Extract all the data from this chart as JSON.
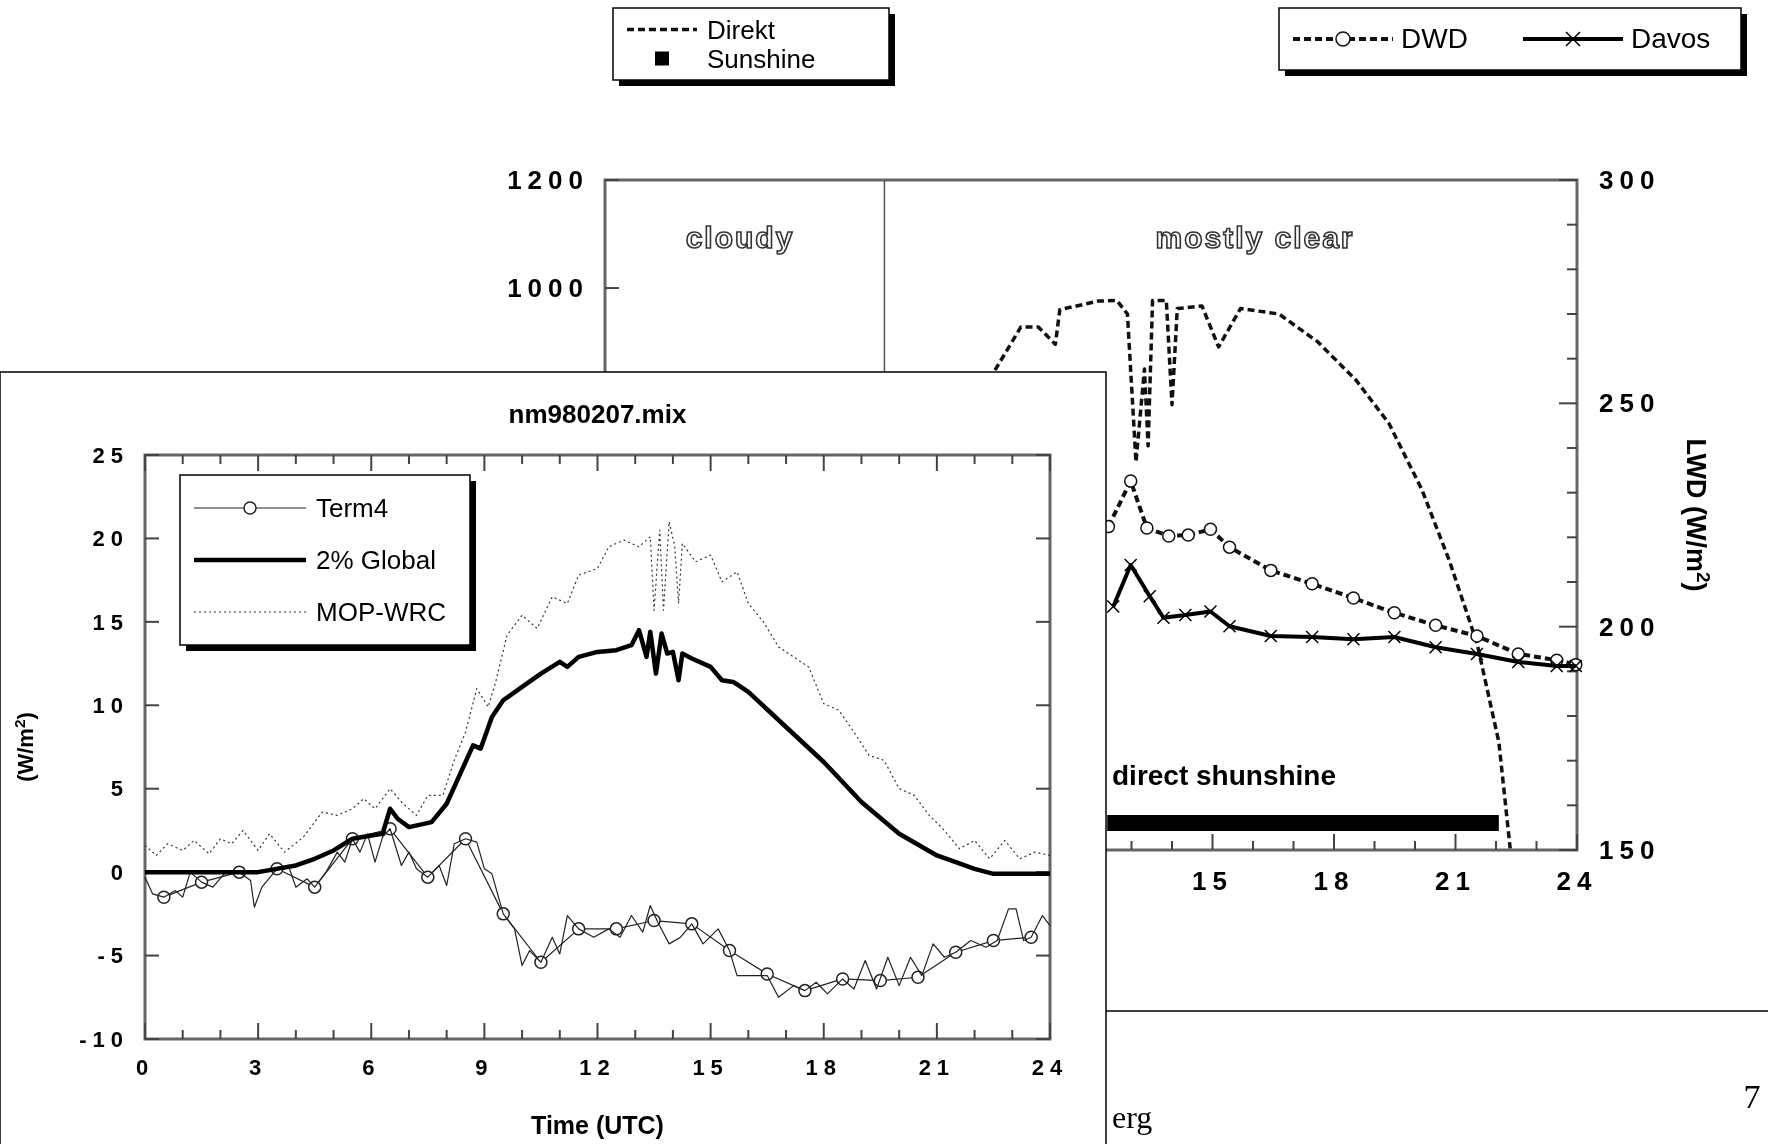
{
  "chart_data": [
    {
      "type": "line",
      "y2label": "LWD (W/m$^{2}$)",
      "legend": "top",
      "xlim": [
        0,
        24
      ],
      "xticks": [
        {
          "value": 13,
          "label": null
        },
        {
          "value": 14,
          "label": null
        },
        15,
        {
          "value": 16,
          "label": null
        },
        {
          "value": 17,
          "label": null
        },
        18,
        {
          "value": 19,
          "label": null
        },
        {
          "value": 20,
          "label": null
        },
        21,
        {
          "value": 22,
          "label": null
        },
        {
          "value": 23,
          "label": null
        },
        24
      ],
      "ylim": [
        -40,
        1200
      ],
      "yticks": [
        1000,
        1200
      ],
      "y2lim": [
        150,
        300
      ],
      "y2ticks": [
        150,
        {
          "value": 160,
          "label": null
        },
        {
          "value": 170,
          "label": null
        },
        {
          "value": 180,
          "label": null
        },
        {
          "value": 190,
          "label": null
        },
        200,
        {
          "value": 210,
          "label": null
        },
        {
          "value": 220,
          "label": null
        },
        {
          "value": 230,
          "label": null
        },
        {
          "value": 240,
          "label": null
        },
        250,
        {
          "value": 260,
          "label": null
        },
        {
          "value": 270,
          "label": null
        },
        {
          "value": 280,
          "label": null
        },
        {
          "value": 290,
          "label": null
        },
        300
      ],
      "ref_lines": [
        {
          "axis": "x",
          "value": 6.9,
          "color": "#555555",
          "line_style": "solid"
        }
      ],
      "annotations": [
        "cloudy",
        "mostly clear",
        "direct shunshine",
        "7",
        "erg"
      ],
      "series": [
        {
          "name": "Direkt",
          "color": "#111111",
          "line_style": "dashed",
          "marker": "none",
          "x": [
            9.63,
            10.27,
            10.7,
            11.12,
            11.23,
            12.19,
            12.64,
            12.9,
            13.11,
            13.32,
            13.41,
            13.52,
            13.86,
            14.0,
            14.13,
            14.74,
            15.15,
            15.69,
            16.64,
            17.59,
            18.54,
            19.36,
            20.17,
            20.85,
            21.53,
            22.07,
            22.35
          ],
          "values": [
            848,
            928,
            928,
            896,
            960,
            976,
            977,
            952,
            678,
            850,
            708,
            977,
            977,
            784,
            962,
            967,
            891,
            962,
            952,
            901,
            830,
            749,
            627,
            495,
            343,
            160,
            -37
          ]
        },
        {
          "name": "Sunshine",
          "color": "#000000",
          "line_style": "solid",
          "x": [
            12.4,
            22.07
          ],
          "values": [
            10,
            10
          ]
        },
        {
          "name": "DWD",
          "color": "#111111",
          "line_style": "dashed",
          "marker": "circle",
          "axis": "y2",
          "x": [
            12.43,
            12.98,
            13.38,
            13.92,
            14.4,
            14.95,
            15.42,
            16.44,
            17.46,
            18.48,
            19.49,
            20.51,
            21.53,
            22.55,
            23.5,
            23.97
          ],
          "values": [
            222.4,
            232.6,
            222.1,
            220.3,
            220.5,
            221.8,
            217.8,
            212.6,
            209.6,
            206.4,
            203.1,
            200.3,
            197.9,
            193.9,
            192.5,
            191.5
          ]
        },
        {
          "name": "Davos",
          "color": "#000000",
          "line_style": "solid",
          "marker": "cross",
          "axis": "y2",
          "x": [
            12.55,
            12.98,
            13.45,
            13.79,
            14.33,
            14.95,
            15.42,
            16.44,
            17.46,
            18.48,
            19.49,
            20.51,
            21.53,
            22.55,
            23.5,
            23.97
          ],
          "values": [
            204.5,
            213.8,
            206.8,
            202,
            202.6,
            203.4,
            200.1,
            197.9,
            197.7,
            197.2,
            197.7,
            195.4,
            193.9,
            192.1,
            191.2,
            191.2
          ]
        }
      ]
    },
    {
      "type": "line",
      "title": "nm980207.mix",
      "xlabel": "Time  (UTC)",
      "ylabel": "(W/m$^{2}$)",
      "legend": "top left",
      "xlim": [
        0,
        24
      ],
      "xticks": [
        0,
        {
          "value": 1,
          "label": null
        },
        {
          "value": 2,
          "label": null
        },
        3,
        {
          "value": 4,
          "label": null
        },
        {
          "value": 5,
          "label": null
        },
        6,
        {
          "value": 7,
          "label": null
        },
        {
          "value": 8,
          "label": null
        },
        9,
        {
          "value": 10,
          "label": null
        },
        {
          "value": 11,
          "label": null
        },
        12,
        {
          "value": 13,
          "label": null
        },
        {
          "value": 14,
          "label": null
        },
        15,
        {
          "value": 16,
          "label": null
        },
        {
          "value": 17,
          "label": null
        },
        18,
        {
          "value": 19,
          "label": null
        },
        {
          "value": 20,
          "label": null
        },
        21,
        {
          "value": 22,
          "label": null
        },
        {
          "value": 23,
          "label": null
        },
        24
      ],
      "ylim": [
        -10,
        25
      ],
      "yticks": [
        -10,
        -5,
        0,
        5,
        10,
        15,
        20,
        25
      ],
      "series": [
        {
          "name": "Term4",
          "color": "#222222",
          "line_style": "solid",
          "marker": "circle",
          "x": [
            0.5,
            1.5,
            2.5,
            3.5,
            4.5,
            5.5,
            6.5,
            7.5,
            8.5,
            9.5,
            10.5,
            11.5,
            12.5,
            13.5,
            14.5,
            15.5,
            16.5,
            17.5,
            18.5,
            19.5,
            20.5,
            21.5,
            22.5,
            23.5
          ],
          "values": [
            -1.5,
            -0.6,
            0,
            0.2,
            -0.9,
            2.0,
            2.6,
            -0.3,
            2.0,
            -2.5,
            -5.4,
            -3.4,
            -3.4,
            -2.9,
            -3.1,
            -4.7,
            -6.1,
            -7.1,
            -6.4,
            -6.5,
            -6.3,
            -4.8,
            -4.1,
            -3.9
          ]
        },
        {
          "color": "#222222",
          "line_style": "solid",
          "marker": "none",
          "x": [
            0,
            0.2,
            0.5,
            0.8,
            1.0,
            1.2,
            1.5,
            1.8,
            2.1,
            2.5,
            2.8,
            2.9,
            3.1,
            3.5,
            3.8,
            4.0,
            4.3,
            4.5,
            4.8,
            5.1,
            5.3,
            5.5,
            5.7,
            5.9,
            6.1,
            6.3,
            6.5,
            6.8,
            7.0,
            7.2,
            7.5,
            7.8,
            8.0,
            8.2,
            8.5,
            8.8,
            9.0,
            9.2,
            9.5,
            9.8,
            10.0,
            10.2,
            10.5,
            10.8,
            11.0,
            11.2,
            11.5,
            11.9,
            12.3,
            12.6,
            12.9,
            13.2,
            13.4,
            13.6,
            13.9,
            14.2,
            14.5,
            14.8,
            15.2,
            15.5,
            15.7,
            16.5,
            16.8,
            17.2,
            17.5,
            17.8,
            18.1,
            18.5,
            18.8,
            19.1,
            19.4,
            19.7,
            20.0,
            20.3,
            20.6,
            20.9,
            21.2,
            21.5,
            21.9,
            22.3,
            22.6,
            22.9,
            23.1,
            23.3,
            23.5,
            23.8,
            24
          ],
          "values": [
            -0.3,
            -1.3,
            -1.5,
            -1.1,
            -1.5,
            0,
            -0.6,
            -0.9,
            -0.1,
            0,
            -0.5,
            -2.1,
            -0.9,
            0.2,
            0.4,
            -0.9,
            -0.4,
            -0.9,
            0,
            1.2,
            0.6,
            2.0,
            1.2,
            2.3,
            0.6,
            2.1,
            2.6,
            0.4,
            1.2,
            0.2,
            -0.3,
            0.4,
            -0.8,
            1.7,
            2.0,
            1.8,
            0.2,
            -0.1,
            -2.5,
            -3.4,
            -5.6,
            -4.7,
            -5.4,
            -3.9,
            -4.9,
            -2.6,
            -3.4,
            -3.9,
            -3.4,
            -3.9,
            -2.6,
            -3.6,
            -2.0,
            -3.0,
            -4.3,
            -3.9,
            -3.1,
            -4.3,
            -3.4,
            -4.7,
            -6.2,
            -6.2,
            -7.5,
            -6.8,
            -7.1,
            -6.6,
            -7.3,
            -6.4,
            -7.0,
            -5.3,
            -7.0,
            -5.1,
            -6.8,
            -5.1,
            -6.2,
            -4.3,
            -5.1,
            -4.8,
            -4.1,
            -4.5,
            -4.1,
            -2.2,
            -2.2,
            -4.1,
            -3.9,
            -2.6,
            -3.2
          ]
        },
        {
          "name": "2% Global",
          "color": "#000000",
          "line_style": "solid",
          "marker": "none",
          "x": [
            0,
            3,
            4,
            4.5,
            5,
            5.5,
            6,
            6.3,
            6.5,
            6.7,
            7,
            7.6,
            8,
            8.4,
            8.7,
            8.9,
            9.2,
            9.5,
            10,
            10.5,
            11,
            11.2,
            11.5,
            12,
            12.5,
            12.9,
            13.1,
            13.3,
            13.4,
            13.55,
            13.7,
            13.85,
            14.0,
            14.15,
            14.25,
            14.5,
            15,
            15.3,
            15.6,
            16,
            17,
            18,
            19,
            20,
            21,
            22,
            22.5,
            24
          ],
          "values": [
            0,
            0,
            0.4,
            0.8,
            1.3,
            2.0,
            2.2,
            2.3,
            3.8,
            3.2,
            2.7,
            3.0,
            4.1,
            6.1,
            7.6,
            7.4,
            9.3,
            10.3,
            11.1,
            11.9,
            12.6,
            12.3,
            12.9,
            13.2,
            13.3,
            13.6,
            14.5,
            12.9,
            14.4,
            11.9,
            14.3,
            13.1,
            13.2,
            11.5,
            13.1,
            12.8,
            12.3,
            11.5,
            11.4,
            10.8,
            8.7,
            6.6,
            4.2,
            2.3,
            1.0,
            0.2,
            -0.1,
            -0.1
          ]
        },
        {
          "name": "MOP-WRC",
          "color": "#333333",
          "line_style": "dotted",
          "marker": "none",
          "x": [
            0,
            0.3,
            0.6,
            1,
            1.3,
            1.7,
            2,
            2.3,
            2.6,
            3,
            3.3,
            3.7,
            4.2,
            4.7,
            5.1,
            5.5,
            5.8,
            6.1,
            6.5,
            6.8,
            7.2,
            7.5,
            7.9,
            8.2,
            8.5,
            8.8,
            9.1,
            9.3,
            9.6,
            10,
            10.4,
            10.8,
            11.2,
            11.5,
            12,
            12.3,
            12.7,
            13.1,
            13.4,
            13.5,
            13.65,
            13.75,
            13.9,
            14.05,
            14.15,
            14.25,
            14.6,
            15,
            15.3,
            15.7,
            16,
            16.4,
            16.8,
            17.2,
            17.6,
            18,
            18.4,
            18.8,
            19.2,
            19.6,
            20,
            20.4,
            20.8,
            21.2,
            21.6,
            22,
            22.4,
            22.8,
            23.2,
            23.6,
            24
          ],
          "values": [
            1.6,
            1.0,
            1.7,
            1.3,
            1.9,
            1.1,
            2.0,
            1.7,
            2.5,
            1.3,
            2.3,
            1.2,
            2.1,
            3.6,
            3.4,
            3.8,
            4.4,
            3.8,
            5.0,
            4.2,
            3.4,
            4.6,
            4.6,
            6.7,
            8.4,
            11.0,
            9.9,
            11.4,
            14.2,
            15.4,
            14.6,
            16.5,
            16.1,
            17.8,
            18.2,
            19.5,
            19.9,
            19.5,
            20.1,
            15.7,
            20.5,
            15.7,
            21.0,
            19.5,
            16.1,
            19.7,
            18.6,
            19.0,
            17.4,
            18.0,
            16.1,
            15.0,
            13.5,
            12.9,
            12.3,
            10.1,
            9.7,
            8.4,
            7.0,
            6.7,
            5.0,
            4.6,
            3.4,
            2.5,
            1.4,
            1.9,
            0.8,
            1.9,
            0.8,
            1.2,
            1.0
          ]
        }
      ]
    }
  ]
}
